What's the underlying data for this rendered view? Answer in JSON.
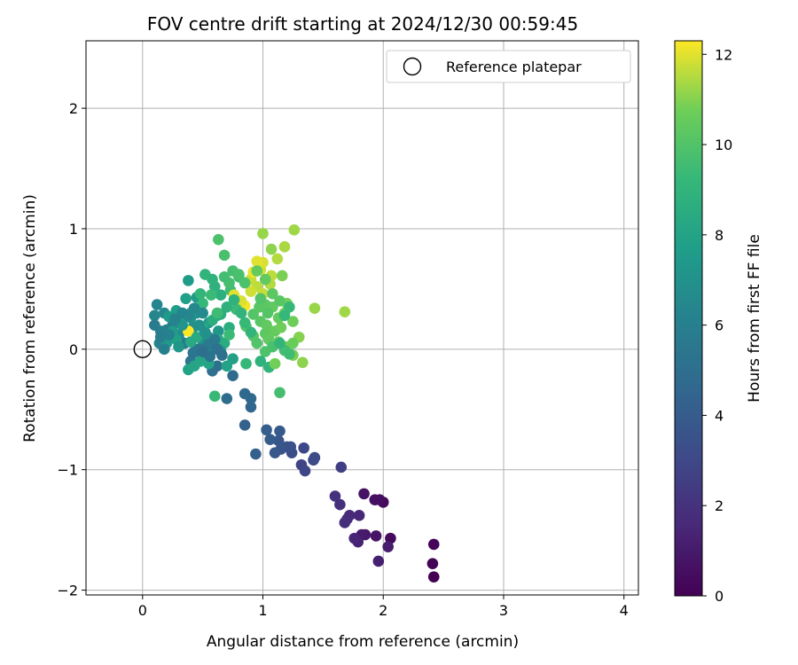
{
  "chart_data": {
    "type": "scatter",
    "title": "FOV centre drift starting at 2024/12/30 00:59:45",
    "xlabel": "Angular distance from reference (arcmin)",
    "ylabel": "Rotation from reference (arcmin)",
    "xlim": [
      -0.47,
      4.12
    ],
    "ylim": [
      -2.04,
      2.56
    ],
    "xticks": [
      0,
      1,
      2,
      3,
      4
    ],
    "yticks": [
      -2,
      -1,
      0,
      1,
      2
    ],
    "grid": true,
    "legend": {
      "placement": "top-right",
      "entries": [
        "Reference platepar"
      ]
    },
    "colorbar": {
      "label": "Hours from first FF file",
      "min": 0,
      "max": 12.3,
      "ticks": [
        0,
        2,
        4,
        6,
        8,
        10,
        12
      ],
      "colormap": "viridis"
    },
    "reference_point": {
      "x": 0,
      "y": 0
    },
    "points": [
      [
        2.42,
        -1.89,
        0.0
      ],
      [
        2.41,
        -1.78,
        0.1
      ],
      [
        2.42,
        -1.62,
        0.2
      ],
      [
        2.06,
        -1.57,
        0.3
      ],
      [
        2.0,
        -1.27,
        0.4
      ],
      [
        1.97,
        -1.25,
        0.5
      ],
      [
        1.93,
        -1.25,
        0.6
      ],
      [
        1.84,
        -1.2,
        0.7
      ],
      [
        1.94,
        -1.55,
        0.8
      ],
      [
        1.85,
        -1.54,
        0.9
      ],
      [
        1.82,
        -1.54,
        1.0
      ],
      [
        2.04,
        -1.64,
        1.1
      ],
      [
        1.96,
        -1.76,
        1.2
      ],
      [
        1.79,
        -1.6,
        1.3
      ],
      [
        1.76,
        -1.57,
        1.4
      ],
      [
        1.8,
        -1.38,
        1.5
      ],
      [
        1.72,
        -1.38,
        1.6
      ],
      [
        1.7,
        -1.41,
        1.7
      ],
      [
        1.68,
        -1.44,
        1.8
      ],
      [
        1.64,
        -1.29,
        1.9
      ],
      [
        1.6,
        -1.22,
        2.0
      ],
      [
        1.65,
        -0.98,
        2.6
      ],
      [
        1.32,
        -0.96,
        2.8
      ],
      [
        1.35,
        -1.01,
        2.9
      ],
      [
        1.34,
        -0.82,
        3.0
      ],
      [
        1.42,
        -0.92,
        3.1
      ],
      [
        1.43,
        -0.9,
        3.2
      ],
      [
        1.24,
        -0.86,
        3.3
      ],
      [
        1.23,
        -0.81,
        3.4
      ],
      [
        1.2,
        -0.81,
        3.5
      ],
      [
        1.15,
        -0.83,
        3.6
      ],
      [
        1.13,
        -0.76,
        3.7
      ],
      [
        1.1,
        -0.86,
        3.8
      ],
      [
        1.14,
        -0.68,
        3.9
      ],
      [
        1.06,
        -0.75,
        4.0
      ],
      [
        1.03,
        -0.67,
        4.1
      ],
      [
        0.94,
        -0.87,
        4.2
      ],
      [
        0.85,
        -0.63,
        4.3
      ],
      [
        0.9,
        -0.48,
        4.5
      ],
      [
        0.9,
        -0.41,
        4.6
      ],
      [
        0.85,
        -0.37,
        4.7
      ],
      [
        0.75,
        -0.22,
        4.8
      ],
      [
        0.7,
        -0.41,
        4.9
      ],
      [
        0.62,
        -0.14,
        5.0
      ],
      [
        0.58,
        -0.18,
        5.1
      ],
      [
        0.5,
        -0.05,
        5.2
      ],
      [
        0.52,
        0.06,
        5.3
      ],
      [
        0.45,
        0.0,
        5.4
      ],
      [
        0.4,
        -0.1,
        5.5
      ],
      [
        0.35,
        0.05,
        5.6
      ],
      [
        0.3,
        0.1,
        5.8
      ],
      [
        0.25,
        0.2,
        5.9
      ],
      [
        0.2,
        0.16,
        6.0
      ],
      [
        0.15,
        0.15,
        6.1
      ],
      [
        0.14,
        0.05,
        6.2
      ],
      [
        0.12,
        0.37,
        6.3
      ],
      [
        0.1,
        0.28,
        6.4
      ],
      [
        0.18,
        0.3,
        6.5
      ],
      [
        0.3,
        0.12,
        6.6
      ],
      [
        0.35,
        0.17,
        6.7
      ],
      [
        0.42,
        0.18,
        6.8
      ],
      [
        0.45,
        0.3,
        6.9
      ],
      [
        0.5,
        0.07,
        7.0
      ],
      [
        0.55,
        0.1,
        7.1
      ],
      [
        0.6,
        0.05,
        7.2
      ],
      [
        0.63,
        0.15,
        7.3
      ],
      [
        0.55,
        0.22,
        7.4
      ],
      [
        0.45,
        0.43,
        7.5
      ],
      [
        0.38,
        0.57,
        7.6
      ],
      [
        0.4,
        0.3,
        7.7
      ],
      [
        0.32,
        0.24,
        7.8
      ],
      [
        0.28,
        0.08,
        7.9
      ],
      [
        0.38,
        -0.17,
        8.0
      ],
      [
        0.43,
        -0.14,
        8.1
      ],
      [
        0.55,
        0.0,
        8.2
      ],
      [
        0.62,
        0.28,
        8.3
      ],
      [
        0.63,
        0.08,
        8.4
      ],
      [
        0.68,
        0.05,
        8.5
      ],
      [
        0.72,
        0.18,
        8.6
      ],
      [
        0.65,
        0.45,
        8.7
      ],
      [
        0.6,
        0.52,
        8.8
      ],
      [
        0.58,
        0.58,
        8.9
      ],
      [
        0.52,
        0.62,
        9.0
      ],
      [
        0.48,
        0.46,
        9.1
      ],
      [
        0.5,
        0.38,
        9.2
      ],
      [
        0.6,
        -0.39,
        9.3
      ],
      [
        0.72,
        0.12,
        9.4
      ],
      [
        0.73,
        0.49,
        9.5
      ],
      [
        0.8,
        0.6,
        9.6
      ],
      [
        0.75,
        0.65,
        9.7
      ],
      [
        0.68,
        0.78,
        9.8
      ],
      [
        0.63,
        0.91,
        9.9
      ],
      [
        0.86,
        0.19,
        10.0
      ],
      [
        0.92,
        0.29,
        10.1
      ],
      [
        0.98,
        0.23,
        10.2
      ],
      [
        1.02,
        0.13,
        10.3
      ],
      [
        1.05,
        0.08,
        10.4
      ],
      [
        1.1,
        0.15,
        10.5
      ],
      [
        1.13,
        0.06,
        10.6
      ],
      [
        1.15,
        0.18,
        10.7
      ],
      [
        1.2,
        0.02,
        10.8
      ],
      [
        1.25,
        -0.05,
        10.9
      ],
      [
        1.3,
        0.1,
        11.0
      ],
      [
        1.33,
        -0.11,
        11.1
      ],
      [
        1.43,
        0.34,
        11.2
      ],
      [
        1.68,
        0.31,
        11.3
      ],
      [
        1.06,
        0.54,
        11.5
      ],
      [
        0.95,
        0.52,
        11.6
      ],
      [
        0.9,
        0.58,
        11.7
      ],
      [
        0.98,
        0.66,
        11.8
      ],
      [
        1.0,
        0.72,
        11.9
      ],
      [
        0.95,
        0.73,
        12.0
      ],
      [
        0.92,
        0.64,
        12.1
      ],
      [
        0.85,
        0.36,
        12.2
      ],
      [
        0.38,
        0.15,
        12.3
      ],
      [
        0.76,
        0.45,
        12.0
      ],
      [
        0.82,
        0.4,
        11.9
      ],
      [
        0.9,
        0.48,
        11.8
      ],
      [
        1.0,
        0.46,
        11.7
      ],
      [
        1.07,
        0.61,
        11.6
      ],
      [
        1.12,
        0.75,
        11.5
      ],
      [
        1.18,
        0.85,
        11.4
      ],
      [
        1.26,
        0.99,
        11.3
      ],
      [
        1.0,
        0.96,
        11.2
      ],
      [
        1.07,
        0.83,
        11.1
      ],
      [
        1.16,
        0.61,
        10.9
      ],
      [
        1.2,
        0.38,
        10.8
      ],
      [
        1.25,
        0.23,
        10.7
      ],
      [
        1.18,
        0.3,
        10.6
      ],
      [
        1.13,
        0.26,
        10.5
      ],
      [
        1.08,
        0.35,
        10.4
      ],
      [
        1.02,
        0.37,
        10.3
      ],
      [
        0.97,
        0.35,
        10.2
      ],
      [
        0.92,
        0.11,
        10.1
      ],
      [
        0.95,
        0.05,
        10.0
      ],
      [
        1.02,
        -0.02,
        9.9
      ],
      [
        1.08,
        0.02,
        9.8
      ],
      [
        1.14,
        -0.36,
        9.7
      ],
      [
        1.18,
        -0.01,
        9.6
      ],
      [
        1.22,
        -0.04,
        9.5
      ],
      [
        0.78,
        0.33,
        9.4
      ],
      [
        0.85,
        0.22,
        9.3
      ],
      [
        0.86,
        -0.12,
        9.2
      ],
      [
        0.9,
        0.14,
        9.1
      ],
      [
        0.82,
        0.3,
        9.0
      ],
      [
        0.76,
        0.41,
        8.9
      ],
      [
        0.7,
        0.35,
        8.8
      ],
      [
        0.65,
        0.29,
        8.7
      ],
      [
        0.58,
        0.24,
        8.6
      ],
      [
        0.5,
        0.18,
        8.5
      ],
      [
        0.45,
        0.1,
        8.4
      ],
      [
        0.4,
        0.06,
        8.3
      ],
      [
        0.48,
        -0.1,
        8.2
      ],
      [
        0.55,
        -0.12,
        8.1
      ],
      [
        0.7,
        -0.14,
        8.0
      ],
      [
        0.75,
        -0.08,
        7.9
      ],
      [
        0.36,
        0.42,
        7.8
      ],
      [
        0.28,
        0.32,
        7.7
      ],
      [
        0.22,
        0.27,
        7.6
      ],
      [
        0.25,
        0.15,
        7.5
      ],
      [
        0.2,
        0.05,
        7.4
      ],
      [
        0.3,
        0.02,
        7.3
      ],
      [
        0.33,
        0.2,
        7.2
      ],
      [
        0.4,
        0.26,
        7.1
      ],
      [
        0.47,
        0.2,
        7.0
      ],
      [
        0.52,
        0.14,
        6.9
      ],
      [
        0.58,
        0.02,
        6.8
      ],
      [
        0.65,
        -0.02,
        6.7
      ],
      [
        0.5,
        0.3,
        6.6
      ],
      [
        0.43,
        0.34,
        6.5
      ],
      [
        0.38,
        0.28,
        6.4
      ],
      [
        0.33,
        0.3,
        6.3
      ],
      [
        0.27,
        0.25,
        6.2
      ],
      [
        0.22,
        0.12,
        6.1
      ],
      [
        0.18,
        0.0,
        6.0
      ],
      [
        0.15,
        0.1,
        5.9
      ],
      [
        0.1,
        0.2,
        5.8
      ],
      [
        0.6,
        0.08,
        5.7
      ],
      [
        0.55,
        0.04,
        5.6
      ],
      [
        0.48,
        0.0,
        5.5
      ],
      [
        0.42,
        -0.03,
        5.4
      ],
      [
        0.56,
        -0.06,
        5.3
      ],
      [
        0.62,
        0.0,
        5.2
      ],
      [
        0.66,
        -0.05,
        5.1
      ],
      [
        0.5,
        -0.02,
        5.0
      ],
      [
        0.95,
        0.65,
        10.5
      ],
      [
        1.02,
        0.58,
        10.4
      ],
      [
        1.08,
        0.46,
        10.3
      ],
      [
        1.14,
        0.4,
        10.2
      ],
      [
        1.04,
        0.3,
        10.1
      ],
      [
        0.98,
        0.42,
        10.0
      ],
      [
        0.85,
        0.55,
        9.9
      ],
      [
        0.8,
        0.62,
        9.8
      ],
      [
        0.72,
        0.55,
        9.7
      ],
      [
        0.68,
        0.6,
        9.6
      ],
      [
        0.62,
        0.3,
        9.5
      ],
      [
        0.57,
        0.45,
        9.4
      ],
      [
        1.22,
        0.35,
        9.3
      ],
      [
        1.18,
        0.28,
        9.2
      ],
      [
        1.14,
        0.05,
        9.1
      ],
      [
        1.05,
        -0.15,
        9.0
      ],
      [
        0.98,
        -0.1,
        8.9
      ],
      [
        1.1,
        -0.12,
        10.8
      ],
      [
        1.25,
        0.05,
        10.6
      ],
      [
        1.03,
        0.2,
        10.4
      ]
    ]
  }
}
